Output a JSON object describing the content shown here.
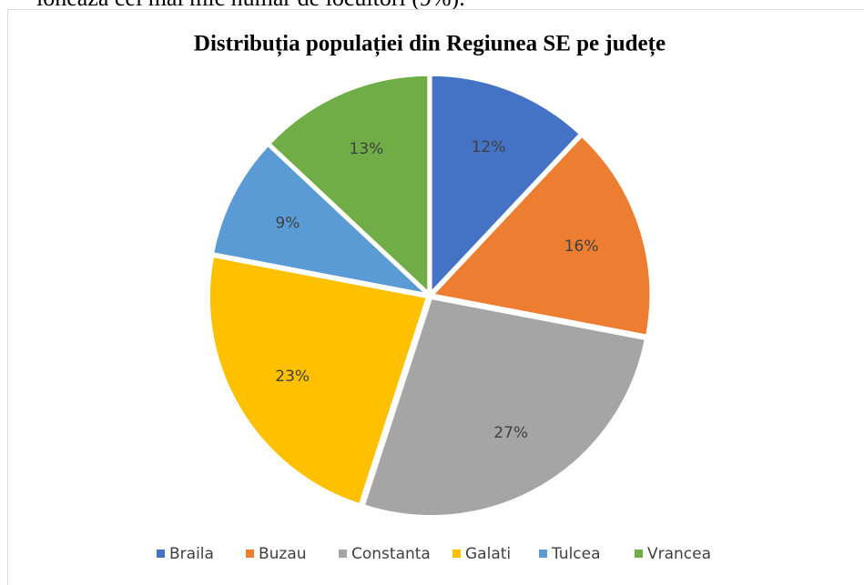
{
  "document": {
    "text_above": "ionează cel mai mic număr de locuitori (9%)."
  },
  "chart_data": {
    "type": "pie",
    "title": "Distribuția populației din Regiunea SE pe județe",
    "categories": [
      "Braila",
      "Buzau",
      "Constanta",
      "Galati",
      "Tulcea",
      "Vrancea"
    ],
    "values": [
      12,
      16,
      27,
      23,
      9,
      13
    ],
    "value_labels": [
      "12%",
      "16%",
      "27%",
      "23%",
      "9%",
      "13%"
    ],
    "colors": [
      "#4472c4",
      "#ed7d31",
      "#a5a5a5",
      "#ffc000",
      "#5b9bd5",
      "#70ad47"
    ],
    "legend": "bottom"
  }
}
